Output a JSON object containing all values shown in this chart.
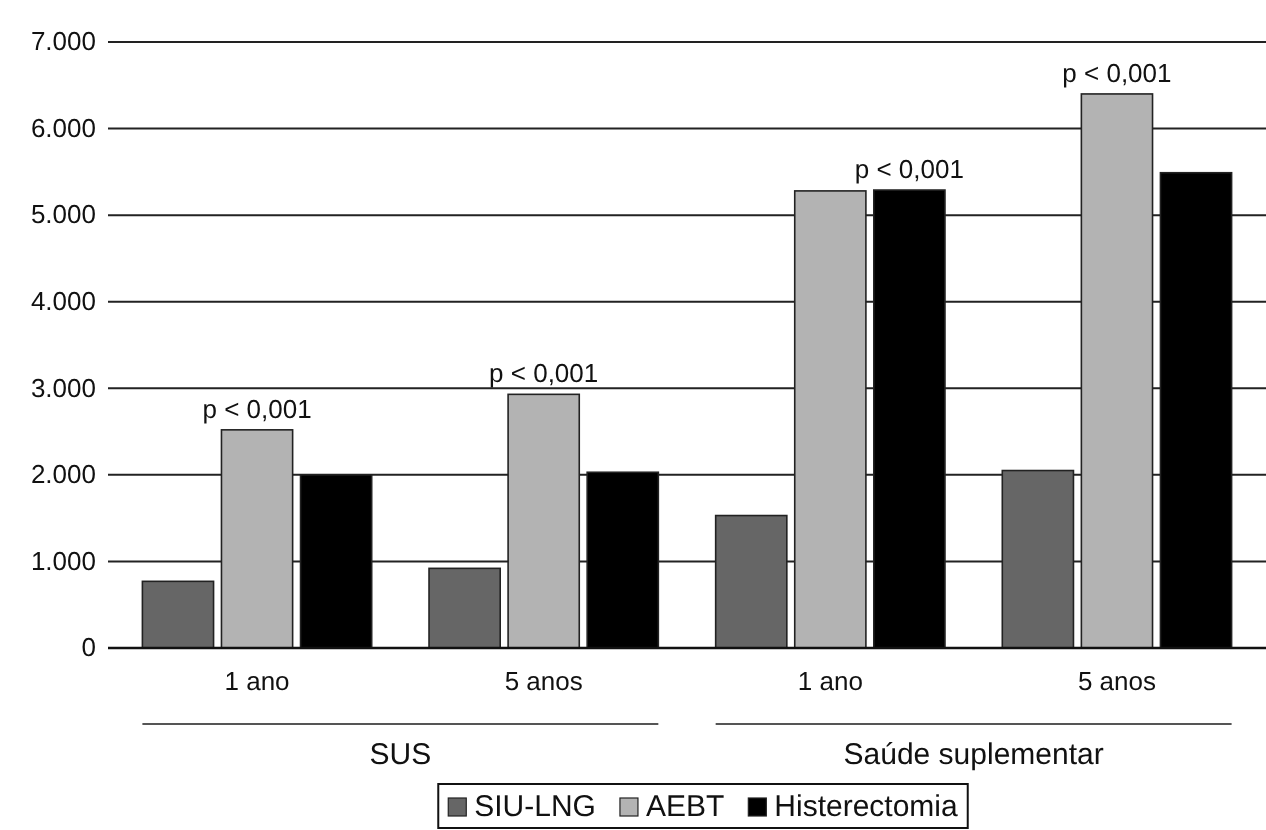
{
  "chart_data": {
    "type": "bar",
    "categories": [
      "1 ano",
      "5 anos",
      "1 ano",
      "5 anos"
    ],
    "series": [
      {
        "name": "SIU-LNG",
        "color": "#666666",
        "values": [
          770,
          920,
          1530,
          2050
        ]
      },
      {
        "name": "AEBT",
        "color": "#b3b3b3",
        "values": [
          2520,
          2930,
          5280,
          6400
        ]
      },
      {
        "name": "Histerectomia",
        "color": "#000000",
        "values": [
          2000,
          2030,
          5290,
          5490
        ]
      }
    ],
    "ylim": [
      0,
      7000
    ],
    "yticks": [
      {
        "value": 0,
        "label": "0"
      },
      {
        "value": 1000,
        "label": "1.000"
      },
      {
        "value": 2000,
        "label": "2.000"
      },
      {
        "value": 3000,
        "label": "3.000"
      },
      {
        "value": 4000,
        "label": "4.000"
      },
      {
        "value": 5000,
        "label": "5.000"
      },
      {
        "value": 6000,
        "label": "6.000"
      },
      {
        "value": 7000,
        "label": "7.000"
      }
    ],
    "annotations": [
      "p < 0,001",
      "p < 0,001",
      "p < 0,001",
      "p < 0,001",
      "SUS",
      "Saúde suplementar"
    ],
    "grid": "y",
    "legend": "bottom"
  }
}
